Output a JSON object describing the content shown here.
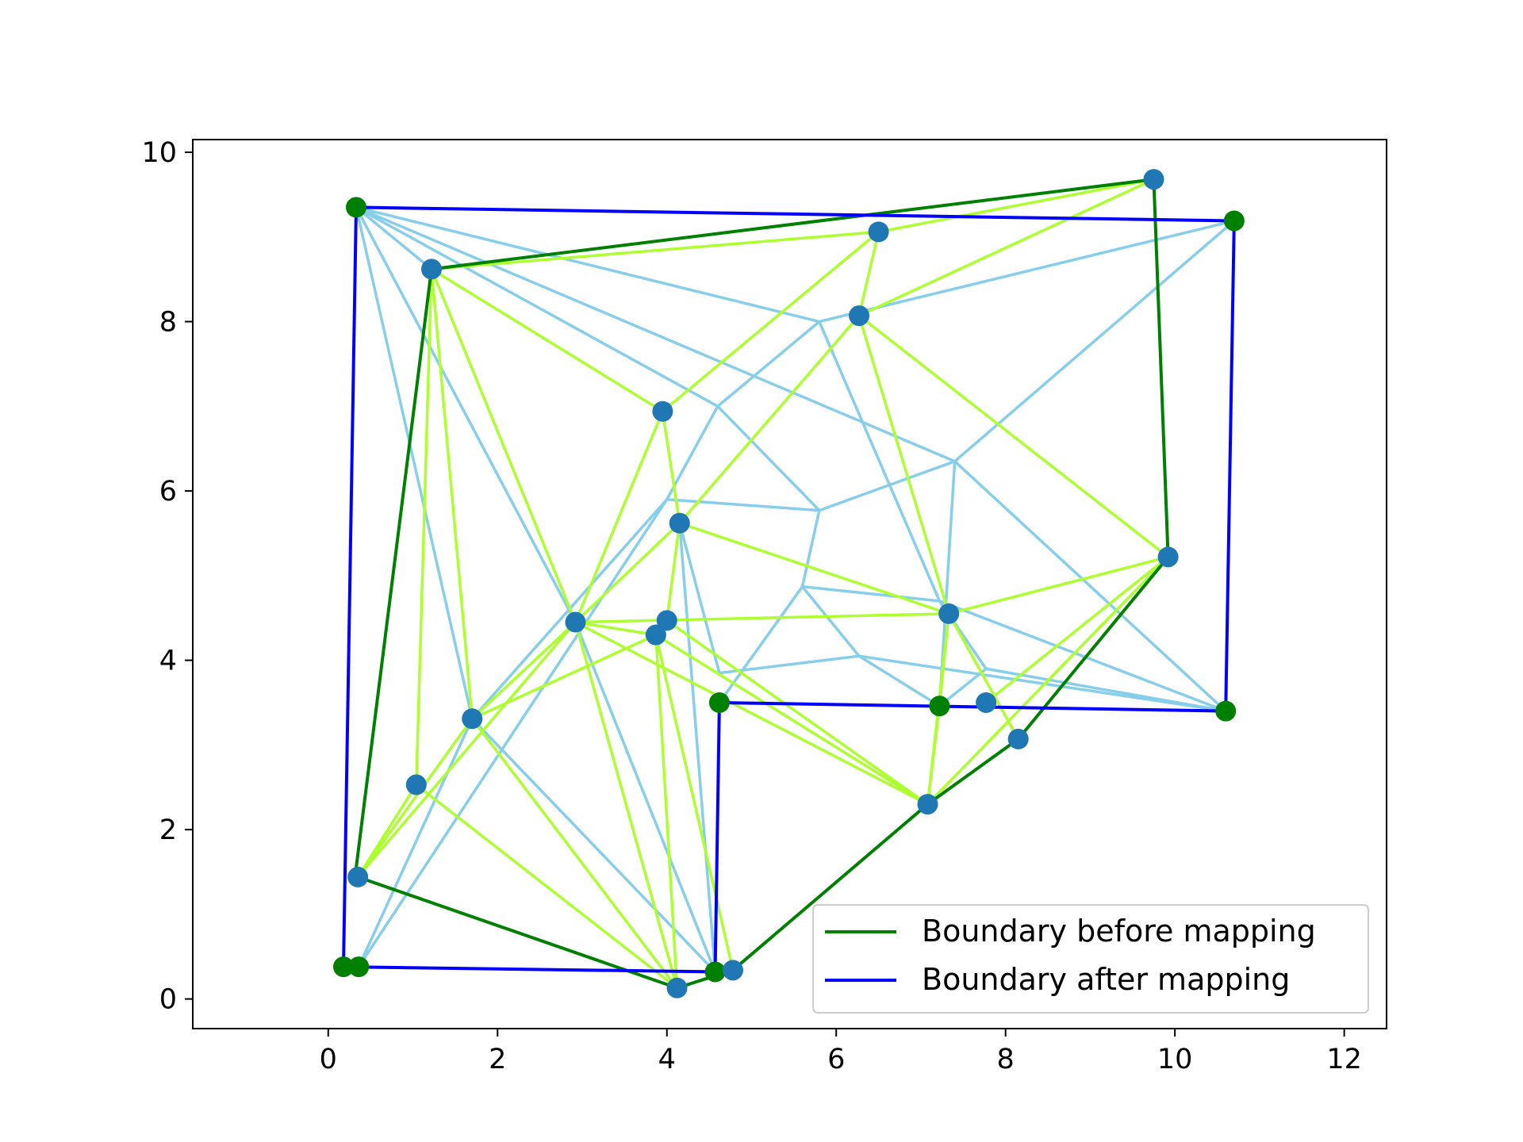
{
  "chart_data": {
    "type": "line",
    "title": "",
    "xlabel": "",
    "ylabel": "",
    "xlim": [
      -1.6,
      12.5
    ],
    "ylim": [
      -0.35,
      10.15
    ],
    "xticks": [
      0,
      2,
      4,
      6,
      8,
      10,
      12
    ],
    "yticks": [
      0,
      2,
      4,
      6,
      8,
      10
    ],
    "xtick_labels": [
      "0",
      "2",
      "4",
      "6",
      "8",
      "10",
      "12"
    ],
    "ytick_labels": [
      "0",
      "2",
      "4",
      "6",
      "8",
      "10"
    ],
    "grid": false,
    "legend_position": "lower right",
    "colors": {
      "before_boundary": "#008000",
      "after_boundary": "#0000ff",
      "mesh_before": "#adff2f",
      "mesh_after": "#87ceeb",
      "interior_point": "#1f77b4",
      "boundary_point": "#008000"
    },
    "series": [
      {
        "name": "Boundary before mapping",
        "x": [
          0.32,
          1.22,
          9.75,
          9.92,
          8.15,
          7.08,
          4.78,
          4.12,
          0.35,
          0.32
        ],
        "y": [
          1.47,
          8.62,
          9.68,
          5.22,
          3.07,
          2.3,
          0.34,
          0.13,
          1.44,
          1.47
        ]
      },
      {
        "name": "Boundary after mapping",
        "x": [
          0.33,
          10.7,
          10.6,
          4.62,
          4.57,
          0.18,
          0.33
        ],
        "y": [
          9.35,
          9.19,
          3.4,
          3.5,
          0.32,
          0.38,
          9.35
        ]
      }
    ],
    "interior_points": {
      "x": [
        9.75,
        6.5,
        6.27,
        3.95,
        1.22,
        4.15,
        9.92,
        7.33,
        4.0,
        3.87,
        2.92,
        1.7,
        1.04,
        7.77,
        8.15,
        7.08,
        4.78,
        4.12,
        0.35
      ],
      "y": [
        9.68,
        9.06,
        8.07,
        6.94,
        8.62,
        5.62,
        5.22,
        4.55,
        4.47,
        4.3,
        4.45,
        3.31,
        2.53,
        3.5,
        3.07,
        2.3,
        0.34,
        0.13,
        1.44
      ]
    },
    "boundary_points": {
      "x": [
        0.33,
        10.7,
        10.6,
        4.62,
        4.57,
        0.18,
        0.36,
        7.22
      ],
      "y": [
        9.35,
        9.19,
        3.4,
        3.5,
        0.32,
        0.38,
        0.38,
        3.46
      ]
    },
    "mesh_before": [
      [
        [
          1.22,
          8.62
        ],
        [
          6.5,
          9.06
        ]
      ],
      [
        [
          6.5,
          9.06
        ],
        [
          9.75,
          9.68
        ]
      ],
      [
        [
          6.5,
          9.06
        ],
        [
          6.27,
          8.07
        ]
      ],
      [
        [
          6.5,
          9.06
        ],
        [
          3.95,
          6.94
        ]
      ],
      [
        [
          9.75,
          9.68
        ],
        [
          6.27,
          8.07
        ]
      ],
      [
        [
          1.22,
          8.62
        ],
        [
          3.95,
          6.94
        ]
      ],
      [
        [
          1.22,
          8.62
        ],
        [
          2.92,
          4.45
        ]
      ],
      [
        [
          1.22,
          8.62
        ],
        [
          1.7,
          3.31
        ]
      ],
      [
        [
          1.22,
          8.62
        ],
        [
          1.04,
          2.53
        ]
      ],
      [
        [
          6.27,
          8.07
        ],
        [
          4.15,
          5.62
        ]
      ],
      [
        [
          6.27,
          8.07
        ],
        [
          9.92,
          5.22
        ]
      ],
      [
        [
          6.27,
          8.07
        ],
        [
          7.33,
          4.55
        ]
      ],
      [
        [
          3.95,
          6.94
        ],
        [
          4.15,
          5.62
        ]
      ],
      [
        [
          3.95,
          6.94
        ],
        [
          2.92,
          4.45
        ]
      ],
      [
        [
          4.15,
          5.62
        ],
        [
          2.92,
          4.45
        ]
      ],
      [
        [
          4.15,
          5.62
        ],
        [
          4.0,
          4.47
        ]
      ],
      [
        [
          4.15,
          5.62
        ],
        [
          7.33,
          4.55
        ]
      ],
      [
        [
          9.92,
          5.22
        ],
        [
          7.33,
          4.55
        ]
      ],
      [
        [
          9.92,
          5.22
        ],
        [
          7.77,
          3.5
        ]
      ],
      [
        [
          9.92,
          5.22
        ],
        [
          7.08,
          2.3
        ]
      ],
      [
        [
          7.33,
          4.55
        ],
        [
          2.92,
          4.45
        ]
      ],
      [
        [
          7.33,
          4.55
        ],
        [
          7.22,
          3.46
        ]
      ],
      [
        [
          7.33,
          4.55
        ],
        [
          8.15,
          3.07
        ]
      ],
      [
        [
          7.33,
          4.55
        ],
        [
          7.08,
          2.3
        ]
      ],
      [
        [
          2.92,
          4.45
        ],
        [
          3.87,
          4.3
        ]
      ],
      [
        [
          2.92,
          4.45
        ],
        [
          1.7,
          3.31
        ]
      ],
      [
        [
          2.92,
          4.45
        ],
        [
          0.35,
          1.44
        ]
      ],
      [
        [
          2.92,
          4.45
        ],
        [
          7.08,
          2.3
        ]
      ],
      [
        [
          4.0,
          4.47
        ],
        [
          3.87,
          4.3
        ]
      ],
      [
        [
          4.0,
          4.47
        ],
        [
          7.08,
          2.3
        ]
      ],
      [
        [
          3.87,
          4.3
        ],
        [
          1.7,
          3.31
        ]
      ],
      [
        [
          3.87,
          4.3
        ],
        [
          4.12,
          0.13
        ]
      ],
      [
        [
          3.87,
          4.3
        ],
        [
          4.78,
          0.34
        ]
      ],
      [
        [
          3.87,
          4.3
        ],
        [
          7.08,
          2.3
        ]
      ],
      [
        [
          1.7,
          3.31
        ],
        [
          0.35,
          1.44
        ]
      ],
      [
        [
          1.7,
          3.31
        ],
        [
          4.12,
          0.13
        ]
      ],
      [
        [
          1.04,
          2.53
        ],
        [
          0.35,
          1.44
        ]
      ],
      [
        [
          1.04,
          2.53
        ],
        [
          4.12,
          0.13
        ]
      ],
      [
        [
          2.92,
          4.45
        ],
        [
          4.12,
          0.13
        ]
      ],
      [
        [
          7.22,
          3.46
        ],
        [
          7.08,
          2.3
        ]
      ],
      [
        [
          7.08,
          2.3
        ],
        [
          4.78,
          0.34
        ]
      ]
    ],
    "mesh_after": [
      [
        [
          0.33,
          9.35
        ],
        [
          1.22,
          8.62
        ]
      ],
      [
        [
          0.33,
          9.35
        ],
        [
          5.8,
          8.0
        ]
      ],
      [
        [
          0.33,
          9.35
        ],
        [
          4.6,
          7.0
        ]
      ],
      [
        [
          0.33,
          9.35
        ],
        [
          1.7,
          3.31
        ]
      ],
      [
        [
          0.33,
          9.35
        ],
        [
          2.92,
          4.45
        ]
      ],
      [
        [
          0.33,
          9.35
        ],
        [
          7.4,
          6.35
        ]
      ],
      [
        [
          10.7,
          9.19
        ],
        [
          5.8,
          8.0
        ]
      ],
      [
        [
          10.7,
          9.19
        ],
        [
          7.4,
          6.35
        ]
      ],
      [
        [
          5.8,
          8.0
        ],
        [
          4.6,
          7.0
        ]
      ],
      [
        [
          5.8,
          8.0
        ],
        [
          7.22,
          4.7
        ]
      ],
      [
        [
          4.6,
          7.0
        ],
        [
          4.0,
          5.9
        ]
      ],
      [
        [
          4.6,
          7.0
        ],
        [
          5.8,
          5.77
        ]
      ],
      [
        [
          4.0,
          5.9
        ],
        [
          5.8,
          5.77
        ]
      ],
      [
        [
          4.0,
          5.9
        ],
        [
          1.7,
          3.31
        ]
      ],
      [
        [
          7.4,
          6.35
        ],
        [
          5.8,
          5.77
        ]
      ],
      [
        [
          7.4,
          6.35
        ],
        [
          7.22,
          3.46
        ]
      ],
      [
        [
          7.4,
          6.35
        ],
        [
          10.6,
          3.4
        ]
      ],
      [
        [
          5.8,
          5.77
        ],
        [
          5.6,
          4.87
        ]
      ],
      [
        [
          5.6,
          4.87
        ],
        [
          7.22,
          4.7
        ]
      ],
      [
        [
          5.6,
          4.87
        ],
        [
          4.62,
          3.5
        ]
      ],
      [
        [
          5.6,
          4.87
        ],
        [
          6.27,
          4.05
        ]
      ],
      [
        [
          7.22,
          4.7
        ],
        [
          7.77,
          3.9
        ]
      ],
      [
        [
          7.22,
          4.7
        ],
        [
          10.6,
          3.4
        ]
      ],
      [
        [
          4.62,
          3.85
        ],
        [
          6.27,
          4.05
        ]
      ],
      [
        [
          6.27,
          4.05
        ],
        [
          7.22,
          3.46
        ]
      ],
      [
        [
          6.27,
          4.05
        ],
        [
          10.6,
          3.4
        ]
      ],
      [
        [
          7.77,
          3.9
        ],
        [
          7.22,
          3.46
        ]
      ],
      [
        [
          7.77,
          3.9
        ],
        [
          10.6,
          3.4
        ]
      ],
      [
        [
          4.62,
          3.85
        ],
        [
          4.15,
          5.62
        ]
      ],
      [
        [
          4.15,
          5.62
        ],
        [
          4.57,
          0.32
        ]
      ],
      [
        [
          2.92,
          4.45
        ],
        [
          4.57,
          0.32
        ]
      ],
      [
        [
          1.7,
          3.31
        ],
        [
          4.57,
          0.32
        ]
      ],
      [
        [
          1.7,
          3.31
        ],
        [
          0.36,
          0.38
        ]
      ],
      [
        [
          4.0,
          5.9
        ],
        [
          0.36,
          0.38
        ]
      ]
    ],
    "legend": [
      "Boundary before mapping",
      "Boundary after mapping"
    ]
  }
}
